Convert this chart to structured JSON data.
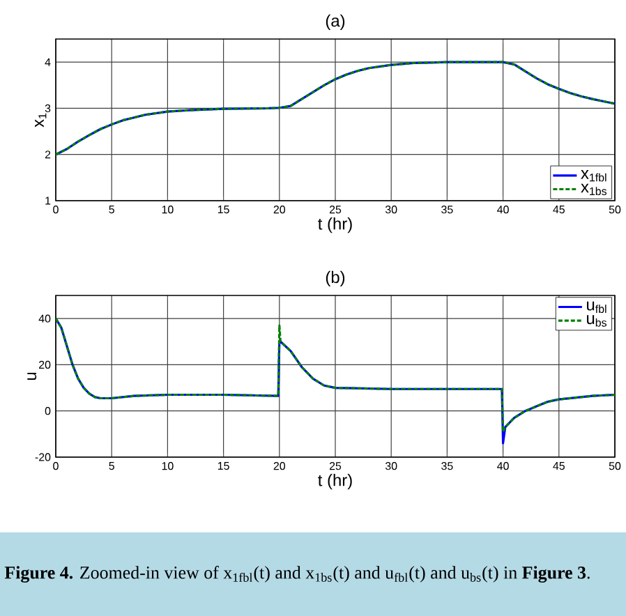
{
  "chart_data": [
    {
      "type": "line",
      "title": "(a)",
      "xlabel": "t (hr)",
      "ylabel": "x$_{1}$",
      "xlim": [
        0,
        50
      ],
      "ylim": [
        1,
        4.5
      ],
      "xticks": [
        0,
        5,
        10,
        15,
        20,
        25,
        30,
        35,
        40,
        45,
        50
      ],
      "yticks": [
        1,
        2,
        3,
        4
      ],
      "grid": true,
      "legend": "bottom right",
      "x": [
        0,
        1,
        2,
        3,
        4,
        5,
        6,
        7,
        8,
        10,
        12,
        15,
        19,
        20,
        21,
        22,
        23,
        24,
        25,
        26,
        27,
        28,
        30,
        32,
        35,
        40,
        41,
        42,
        43,
        44,
        45,
        46,
        47,
        48,
        49,
        50
      ],
      "series": [
        {
          "name": "x$_{1fbl}$",
          "color": "#0000ff",
          "line_style": "solid",
          "values": [
            2.0,
            2.12,
            2.28,
            2.42,
            2.55,
            2.65,
            2.74,
            2.8,
            2.86,
            2.93,
            2.96,
            2.99,
            3.0,
            3.01,
            3.05,
            3.2,
            3.35,
            3.5,
            3.63,
            3.73,
            3.81,
            3.87,
            3.94,
            3.98,
            4.0,
            4.0,
            3.95,
            3.8,
            3.65,
            3.52,
            3.42,
            3.33,
            3.26,
            3.2,
            3.15,
            3.1
          ]
        },
        {
          "name": "x$_{1bs}$",
          "color": "#008000",
          "line_style": "dashed",
          "values": [
            2.0,
            2.12,
            2.28,
            2.42,
            2.55,
            2.65,
            2.74,
            2.8,
            2.86,
            2.93,
            2.96,
            2.99,
            3.0,
            3.01,
            3.05,
            3.2,
            3.35,
            3.5,
            3.63,
            3.73,
            3.81,
            3.87,
            3.94,
            3.98,
            4.0,
            4.0,
            3.95,
            3.8,
            3.65,
            3.52,
            3.42,
            3.33,
            3.26,
            3.2,
            3.15,
            3.1
          ]
        }
      ]
    },
    {
      "type": "line",
      "title": "(b)",
      "xlabel": "t (hr)",
      "ylabel": "u",
      "xlim": [
        0,
        50
      ],
      "ylim": [
        -20,
        50
      ],
      "xticks": [
        0,
        5,
        10,
        15,
        20,
        25,
        30,
        35,
        40,
        45,
        50
      ],
      "yticks": [
        -20,
        0,
        20,
        40
      ],
      "grid": true,
      "legend": "top right",
      "x": [
        0,
        0.5,
        1,
        1.5,
        2,
        2.5,
        3,
        3.5,
        4,
        5,
        6,
        7,
        10,
        15,
        19.9,
        20,
        20.1,
        21,
        22,
        23,
        24,
        25,
        30,
        39.9,
        40,
        40.2,
        41,
        42,
        43,
        44,
        45,
        46,
        47,
        48,
        50
      ],
      "series": [
        {
          "name": "u$_{fbl}$",
          "color": "#0000ff",
          "line_style": "solid",
          "values": [
            40,
            36,
            28,
            20,
            14,
            10,
            7.5,
            6,
            5.5,
            5.5,
            6,
            6.5,
            7,
            7,
            6.5,
            30,
            30,
            26,
            19,
            14,
            11,
            10,
            9.5,
            9.5,
            -14,
            -7,
            -3,
            0,
            2,
            4,
            5,
            5.5,
            6,
            6.5,
            7
          ]
        },
        {
          "name": "u$_{bs}$",
          "color": "#008000",
          "line_style": "dashed",
          "values": [
            40,
            36,
            28,
            20,
            14,
            10,
            7.5,
            6,
            5.5,
            5.5,
            6,
            6.5,
            7,
            7,
            6.5,
            37,
            30,
            26,
            19,
            14,
            11,
            10,
            9.5,
            9.5,
            -9,
            -7,
            -3,
            0,
            2,
            4,
            5,
            5.5,
            6,
            6.5,
            7
          ]
        }
      ],
      "annotations": [
        "**Figure 4.** Zoomed-in view of x$_{1fbl}$(t) and x$_{1bs}$(t) and u$_{fbl}$(t) and u$_{bs}$(t) in **Figure 3**."
      ]
    }
  ]
}
